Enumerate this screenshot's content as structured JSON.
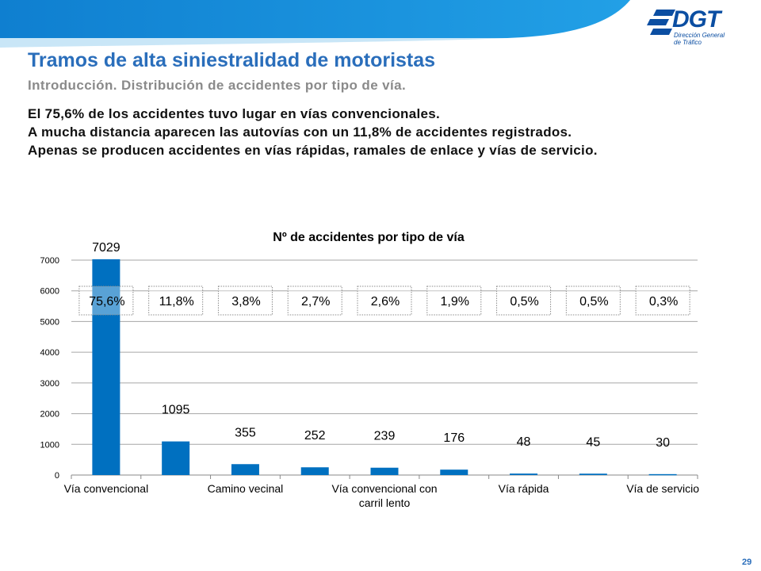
{
  "header": {
    "title": "Tramos de alta siniestralidad de motoristas",
    "subtitle": "Introducción. Distribución de accidentes por tipo de vía.",
    "lines": [
      "El 75,6% de los accidentes tuvo lugar en vías convencionales.",
      "A mucha distancia aparecen las autovías con un 11,8% de accidentes registrados.",
      "Apenas se producen accidentes en vías rápidas, ramales de enlace y vías de servicio."
    ]
  },
  "logo": {
    "name": "DGT",
    "subtitle_lines": [
      "Dirección General",
      "de Tráfico"
    ]
  },
  "colors": {
    "brand_blue": "#2a6ebb",
    "bar": "#0070c0",
    "header_band": "#1a8fd8"
  },
  "chart_data": {
    "type": "bar",
    "title": "Nº de accidentes por tipo de vía",
    "categories": [
      "Vía convencional",
      "",
      "Camino vecinal",
      "",
      "Vía convencional con carril lento",
      "",
      "Vía rápida",
      "",
      "Vía de servicio"
    ],
    "values": [
      7029,
      1095,
      355,
      252,
      239,
      176,
      48,
      45,
      30
    ],
    "percent_labels": [
      "75,6%",
      "11,8%",
      "3,8%",
      "2,7%",
      "2,6%",
      "1,9%",
      "0,5%",
      "0,5%",
      "0,3%"
    ],
    "y_ticks": [
      0,
      1000,
      2000,
      3000,
      4000,
      5000,
      6000,
      7000
    ],
    "ylim": [
      0,
      7000
    ],
    "grid": true,
    "legend": "none"
  },
  "footer": {
    "page_number": "29"
  }
}
